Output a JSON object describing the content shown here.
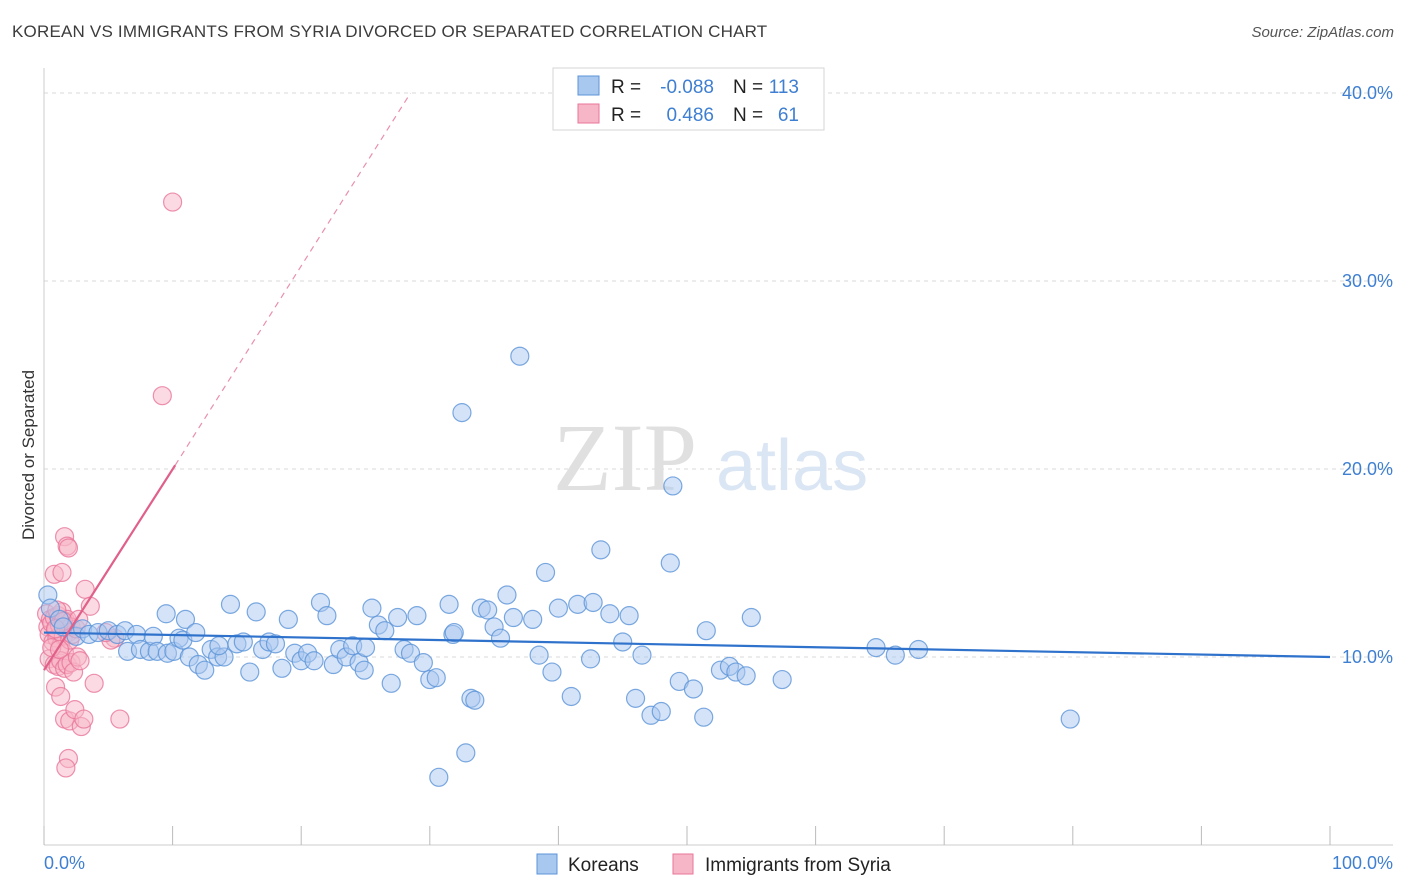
{
  "title": "KOREAN VS IMMIGRANTS FROM SYRIA DIVORCED OR SEPARATED CORRELATION CHART",
  "source": "Source: ZipAtlas.com",
  "watermark": {
    "zip": "ZIP",
    "atlas": "atlas"
  },
  "colors": {
    "koreans_fill": "#a9c8ef",
    "koreans_stroke": "#5b93d8",
    "koreans_line": "#2f72cc",
    "syria_fill": "#f7b6c8",
    "syria_stroke": "#e8759a",
    "syria_line": "#e0608a",
    "tick": "#3f7fd1",
    "grid": "#d9d9d9"
  },
  "stats": {
    "koreans": {
      "r_label": "R =",
      "r": "-0.088",
      "n_label": "N =",
      "n": "113"
    },
    "syria": {
      "r_label": "R =",
      "r": "0.486",
      "n_label": "N =",
      "n": "61"
    }
  },
  "chart_data": {
    "type": "scatter",
    "title": "KOREAN VS IMMIGRANTS FROM SYRIA DIVORCED OR SEPARATED CORRELATION CHART",
    "xlabel": "",
    "ylabel": "Divorced or Separated",
    "xlim": [
      0,
      100
    ],
    "ylim": [
      0,
      40.8
    ],
    "x_tick_labels": {
      "left": "0.0%",
      "right": "100.0%"
    },
    "y_ticks": [
      {
        "value": 10,
        "label": "10.0%"
      },
      {
        "value": 20,
        "label": "20.0%"
      },
      {
        "value": 30,
        "label": "30.0%"
      },
      {
        "value": 40,
        "label": "40.0%"
      }
    ],
    "legend": [
      "Koreans",
      "Immigrants from Syria"
    ],
    "series": [
      {
        "name": "Koreans",
        "trend": {
          "x": [
            0,
            100
          ],
          "y": [
            11.3,
            10.0
          ]
        },
        "points": [
          [
            0.3,
            13.3
          ],
          [
            0.5,
            12.6
          ],
          [
            1.2,
            12.0
          ],
          [
            1.5,
            11.6
          ],
          [
            2.5,
            11.1
          ],
          [
            3.0,
            11.5
          ],
          [
            3.5,
            11.2
          ],
          [
            4.2,
            11.3
          ],
          [
            5.0,
            11.4
          ],
          [
            5.7,
            11.2
          ],
          [
            6.3,
            11.4
          ],
          [
            6.5,
            10.3
          ],
          [
            7.2,
            11.2
          ],
          [
            7.5,
            10.4
          ],
          [
            8.2,
            10.3
          ],
          [
            8.5,
            11.1
          ],
          [
            8.8,
            10.3
          ],
          [
            9.5,
            12.3
          ],
          [
            9.6,
            10.2
          ],
          [
            10.1,
            10.3
          ],
          [
            10.5,
            11.0
          ],
          [
            10.8,
            10.9
          ],
          [
            11.0,
            12.0
          ],
          [
            11.3,
            10.0
          ],
          [
            11.8,
            11.3
          ],
          [
            12.0,
            9.6
          ],
          [
            12.5,
            9.3
          ],
          [
            13.0,
            10.4
          ],
          [
            13.5,
            10.0
          ],
          [
            14.0,
            10.0
          ],
          [
            14.5,
            12.8
          ],
          [
            15.0,
            10.7
          ],
          [
            15.5,
            10.8
          ],
          [
            16.0,
            9.2
          ],
          [
            16.5,
            12.4
          ],
          [
            17.0,
            10.4
          ],
          [
            17.5,
            10.8
          ],
          [
            18.0,
            10.7
          ],
          [
            18.5,
            9.4
          ],
          [
            19.0,
            12.0
          ],
          [
            19.5,
            10.2
          ],
          [
            20.0,
            9.8
          ],
          [
            20.5,
            10.2
          ],
          [
            21.0,
            9.8
          ],
          [
            21.5,
            12.9
          ],
          [
            22.0,
            12.2
          ],
          [
            22.5,
            9.6
          ],
          [
            23.0,
            10.4
          ],
          [
            23.5,
            10.0
          ],
          [
            24.0,
            10.6
          ],
          [
            24.5,
            9.7
          ],
          [
            25.0,
            10.5
          ],
          [
            25.5,
            12.6
          ],
          [
            26.0,
            11.7
          ],
          [
            26.5,
            11.4
          ],
          [
            27.0,
            8.6
          ],
          [
            27.5,
            12.1
          ],
          [
            28.0,
            10.4
          ],
          [
            28.5,
            10.2
          ],
          [
            29.0,
            12.2
          ],
          [
            29.5,
            9.7
          ],
          [
            30.0,
            8.8
          ],
          [
            30.5,
            8.9
          ],
          [
            31.5,
            12.8
          ],
          [
            31.8,
            11.2
          ],
          [
            32.5,
            23.0
          ],
          [
            32.8,
            4.9
          ],
          [
            33.2,
            7.8
          ],
          [
            33.5,
            7.7
          ],
          [
            34.0,
            12.6
          ],
          [
            34.5,
            12.5
          ],
          [
            35.0,
            11.6
          ],
          [
            35.5,
            11.0
          ],
          [
            36.0,
            13.3
          ],
          [
            36.5,
            12.1
          ],
          [
            37.0,
            26.0
          ],
          [
            38.0,
            12.0
          ],
          [
            38.5,
            10.1
          ],
          [
            39.0,
            14.5
          ],
          [
            39.5,
            9.2
          ],
          [
            40.0,
            12.6
          ],
          [
            41.0,
            7.9
          ],
          [
            41.5,
            12.8
          ],
          [
            42.5,
            9.9
          ],
          [
            42.7,
            12.9
          ],
          [
            43.3,
            15.7
          ],
          [
            44.0,
            12.3
          ],
          [
            45.0,
            10.8
          ],
          [
            45.5,
            12.2
          ],
          [
            46.0,
            7.8
          ],
          [
            46.5,
            10.1
          ],
          [
            47.2,
            6.9
          ],
          [
            48.0,
            7.1
          ],
          [
            48.7,
            15.0
          ],
          [
            48.9,
            19.1
          ],
          [
            49.4,
            8.7
          ],
          [
            50.5,
            8.3
          ],
          [
            51.3,
            6.8
          ],
          [
            51.5,
            11.4
          ],
          [
            52.6,
            9.3
          ],
          [
            53.3,
            9.5
          ],
          [
            53.8,
            9.2
          ],
          [
            54.6,
            9.0
          ],
          [
            55.0,
            12.1
          ],
          [
            57.4,
            8.8
          ],
          [
            64.7,
            10.5
          ],
          [
            66.2,
            10.1
          ],
          [
            68.0,
            10.4
          ],
          [
            79.8,
            6.7
          ],
          [
            30.7,
            3.6
          ],
          [
            31.9,
            11.3
          ],
          [
            24.9,
            9.3
          ],
          [
            13.6,
            10.6
          ]
        ]
      },
      {
        "name": "Immigrants from Syria",
        "trend": {
          "x": [
            0,
            10.2
          ],
          "y": [
            9.3,
            20.2
          ]
        },
        "trend_extension": {
          "x": [
            10.2,
            28.5
          ],
          "y": [
            20.2,
            40.0
          ]
        },
        "points": [
          [
            0.2,
            12.3
          ],
          [
            0.3,
            11.6
          ],
          [
            0.4,
            11.2
          ],
          [
            0.5,
            12.0
          ],
          [
            0.6,
            11.8
          ],
          [
            0.7,
            10.8
          ],
          [
            0.8,
            12.1
          ],
          [
            0.9,
            11.4
          ],
          [
            1.0,
            11.0
          ],
          [
            1.1,
            12.2
          ],
          [
            1.2,
            11.7
          ],
          [
            1.3,
            10.6
          ],
          [
            1.4,
            12.4
          ],
          [
            1.5,
            11.1
          ],
          [
            1.6,
            10.2
          ],
          [
            1.7,
            11.9
          ],
          [
            1.8,
            12.0
          ],
          [
            1.9,
            11.3
          ],
          [
            2.0,
            10.9
          ],
          [
            2.1,
            11.6
          ],
          [
            0.4,
            9.9
          ],
          [
            0.8,
            9.6
          ],
          [
            1.1,
            9.5
          ],
          [
            1.3,
            9.8
          ],
          [
            1.6,
            9.4
          ],
          [
            1.8,
            9.6
          ],
          [
            2.1,
            9.7
          ],
          [
            2.3,
            9.2
          ],
          [
            2.6,
            10.0
          ],
          [
            2.8,
            9.8
          ],
          [
            0.8,
            14.4
          ],
          [
            1.4,
            14.5
          ],
          [
            1.6,
            16.4
          ],
          [
            1.8,
            15.9
          ],
          [
            1.9,
            15.8
          ],
          [
            3.2,
            13.6
          ],
          [
            3.6,
            12.7
          ],
          [
            0.9,
            8.4
          ],
          [
            1.3,
            7.9
          ],
          [
            1.6,
            6.7
          ],
          [
            2.0,
            6.6
          ],
          [
            2.4,
            7.2
          ],
          [
            2.9,
            6.3
          ],
          [
            3.1,
            6.7
          ],
          [
            1.9,
            4.6
          ],
          [
            1.7,
            4.1
          ],
          [
            3.9,
            8.6
          ],
          [
            5.9,
            6.7
          ],
          [
            5.5,
            11.0
          ],
          [
            9.2,
            23.9
          ],
          [
            10.0,
            34.2
          ],
          [
            2.2,
            11.2
          ],
          [
            2.5,
            11.5
          ],
          [
            0.6,
            10.5
          ],
          [
            1.0,
            12.5
          ],
          [
            1.5,
            11.9
          ],
          [
            2.7,
            12.0
          ],
          [
            0.9,
            11.5
          ],
          [
            1.2,
            10.4
          ],
          [
            5.2,
            10.9
          ],
          [
            4.8,
            11.3
          ]
        ]
      }
    ]
  }
}
